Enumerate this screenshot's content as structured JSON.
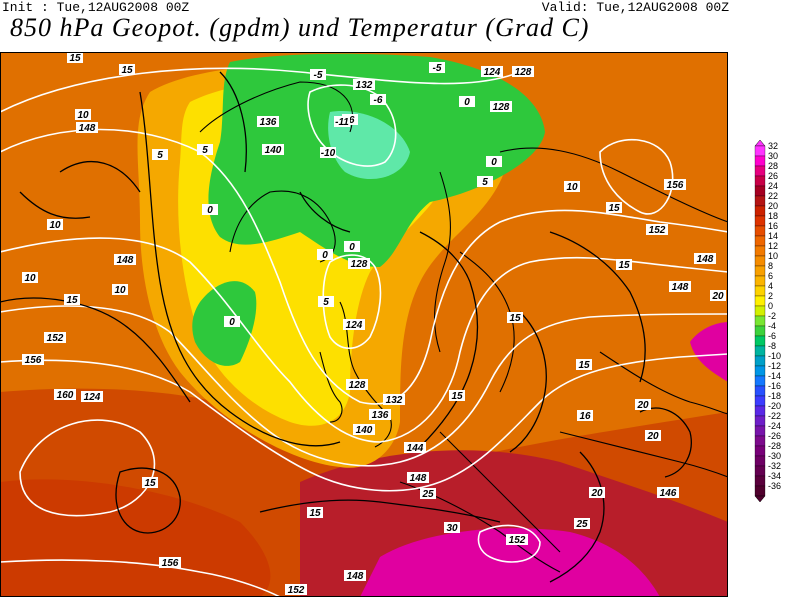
{
  "header": {
    "init": "Init : Tue,12AUG2008 00Z",
    "valid": "Valid: Tue,12AUG2008 00Z",
    "title": "850 hPa Geopot. (gpdm) und Temperatur (Grad C)"
  },
  "colorbar": {
    "levels": [
      "32",
      "30",
      "28",
      "26",
      "24",
      "22",
      "20",
      "18",
      "16",
      "14",
      "12",
      "10",
      "8",
      "6",
      "4",
      "2",
      "0",
      "-2",
      "-4",
      "-6",
      "-8",
      "-10",
      "-12",
      "-14",
      "-16",
      "-18",
      "-20",
      "-22",
      "-24",
      "-26",
      "-28",
      "-30",
      "-32",
      "-34",
      "-36"
    ],
    "colors": [
      "#ff33ff",
      "#ff00cc",
      "#e6007e",
      "#c80046",
      "#a50021",
      "#b41414",
      "#cc2200",
      "#dd3300",
      "#e64d00",
      "#ee6600",
      "#f27a00",
      "#f58c00",
      "#f8a000",
      "#fbb400",
      "#fdd200",
      "#fff000",
      "#d2f000",
      "#78e632",
      "#3cd23c",
      "#00c864",
      "#00b4a0",
      "#00a0c8",
      "#0096e6",
      "#1478ff",
      "#2850ff",
      "#3c3cff",
      "#5a28e6",
      "#6e1ec8",
      "#7814aa",
      "#7d0a8c",
      "#780078",
      "#6e0064",
      "#640050",
      "#5a003c",
      "#50002d"
    ]
  },
  "map": {
    "geopotential_labels": [
      "148",
      "132",
      "124",
      "128",
      "140",
      "136",
      "132",
      "124",
      "128",
      "152",
      "156",
      "148",
      "148",
      "160",
      "148",
      "152",
      "156",
      "140",
      "128",
      "132",
      "136",
      "144",
      "148",
      "152",
      "156",
      "148",
      "152",
      "146",
      "124",
      "128"
    ],
    "temperature_labels": [
      "15",
      "15",
      "10",
      "5",
      "5",
      "-5",
      "-6",
      "-6",
      "-11",
      "-10",
      "-5",
      "0",
      "0",
      "5",
      "0",
      "5",
      "0",
      "0",
      "0",
      "10",
      "10",
      "15",
      "10",
      "15",
      "15",
      "15",
      "20",
      "15",
      "20",
      "25",
      "30",
      "25",
      "20",
      "15",
      "15",
      "15",
      "16",
      "20",
      "10"
    ]
  }
}
